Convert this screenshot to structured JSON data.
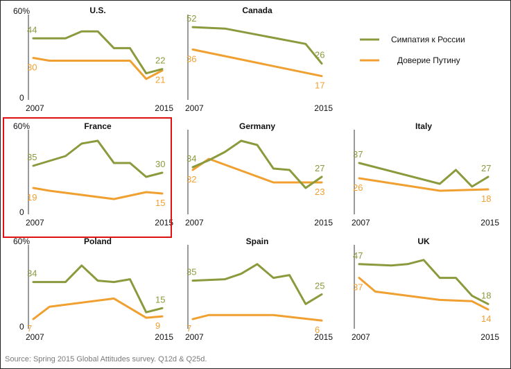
{
  "chart_data": {
    "type": "line",
    "colors": {
      "sympathy": "#8a9a3c",
      "trust": "#f0a030",
      "highlight": "#e01010"
    },
    "legend": {
      "position": "top-right",
      "items": [
        {
          "key": "sympathy",
          "label": "Симпатия к России"
        },
        {
          "key": "trust",
          "label": "Доверие Путину"
        }
      ]
    },
    "x_range": [
      2007,
      2015
    ],
    "y_range": [
      0,
      60
    ],
    "x_tick_labels": [
      "2007",
      "2015"
    ],
    "y_tick_labels": [
      "0",
      "60%"
    ],
    "panels": [
      {
        "title": "U.S.",
        "sympathy": [
          [
            2007,
            44
          ],
          [
            2008,
            44
          ],
          [
            2009,
            44
          ],
          [
            2010,
            49
          ],
          [
            2011,
            49
          ],
          [
            2012,
            37
          ],
          [
            2013,
            37
          ],
          [
            2014,
            19
          ],
          [
            2015,
            22
          ]
        ],
        "trust": [
          [
            2007,
            30
          ],
          [
            2008,
            28
          ],
          [
            2009,
            28
          ],
          [
            2010,
            28
          ],
          [
            2011,
            28
          ],
          [
            2012,
            28
          ],
          [
            2013,
            28
          ],
          [
            2014,
            15
          ],
          [
            2015,
            21
          ]
        ],
        "labels": {
          "sympathy_start": "44",
          "sympathy_end": "22",
          "trust_start": "30",
          "trust_end": "21"
        }
      },
      {
        "title": "Canada",
        "sympathy": [
          [
            2007,
            52
          ],
          [
            2009,
            51
          ],
          [
            2014,
            40
          ],
          [
            2015,
            26
          ]
        ],
        "trust": [
          [
            2007,
            36
          ],
          [
            2015,
            17
          ]
        ],
        "labels": {
          "sympathy_start": "52",
          "sympathy_end": "26",
          "trust_start": "36",
          "trust_end": "17"
        }
      },
      {
        "title": "France",
        "highlight": true,
        "sympathy": [
          [
            2007,
            35
          ],
          [
            2009,
            42
          ],
          [
            2010,
            51
          ],
          [
            2011,
            53
          ],
          [
            2012,
            37
          ],
          [
            2013,
            37
          ],
          [
            2014,
            27
          ],
          [
            2015,
            30
          ]
        ],
        "trust": [
          [
            2007,
            19
          ],
          [
            2008,
            17
          ],
          [
            2012,
            11
          ],
          [
            2014,
            16
          ],
          [
            2015,
            15
          ]
        ],
        "labels": {
          "sympathy_start": "35",
          "sympathy_end": "30",
          "trust_start": "19",
          "trust_end": "15"
        }
      },
      {
        "title": "Germany",
        "sympathy": [
          [
            2007,
            34
          ],
          [
            2008,
            39
          ],
          [
            2009,
            45
          ],
          [
            2010,
            53
          ],
          [
            2011,
            50
          ],
          [
            2012,
            33
          ],
          [
            2013,
            32
          ],
          [
            2014,
            19
          ],
          [
            2015,
            27
          ]
        ],
        "trust": [
          [
            2007,
            32
          ],
          [
            2008,
            40
          ],
          [
            2012,
            23
          ],
          [
            2015,
            23
          ]
        ],
        "labels": {
          "sympathy_start": "34",
          "sympathy_end": "27",
          "trust_start": "32",
          "trust_end": "23"
        }
      },
      {
        "title": "Italy",
        "sympathy": [
          [
            2007,
            37
          ],
          [
            2012,
            22
          ],
          [
            2013,
            32
          ],
          [
            2014,
            20
          ],
          [
            2015,
            27
          ]
        ],
        "trust": [
          [
            2007,
            26
          ],
          [
            2012,
            17
          ],
          [
            2015,
            18
          ]
        ],
        "labels": {
          "sympathy_start": "37",
          "sympathy_end": "27",
          "trust_start": "26",
          "trust_end": "18"
        }
      },
      {
        "title": "Poland",
        "sympathy": [
          [
            2007,
            34
          ],
          [
            2008,
            34
          ],
          [
            2009,
            34
          ],
          [
            2010,
            46
          ],
          [
            2011,
            35
          ],
          [
            2012,
            34
          ],
          [
            2013,
            36
          ],
          [
            2014,
            12
          ],
          [
            2015,
            15
          ]
        ],
        "trust": [
          [
            2007,
            7
          ],
          [
            2008,
            16
          ],
          [
            2012,
            22
          ],
          [
            2014,
            8
          ],
          [
            2015,
            9
          ]
        ],
        "labels": {
          "sympathy_start": "34",
          "sympathy_end": "15",
          "trust_start": "7",
          "trust_end": "9"
        }
      },
      {
        "title": "Spain",
        "sympathy": [
          [
            2007,
            35
          ],
          [
            2009,
            36
          ],
          [
            2010,
            40
          ],
          [
            2011,
            47
          ],
          [
            2012,
            37
          ],
          [
            2013,
            39
          ],
          [
            2014,
            18
          ],
          [
            2015,
            25
          ]
        ],
        "trust": [
          [
            2007,
            7
          ],
          [
            2008,
            10
          ],
          [
            2012,
            10
          ],
          [
            2015,
            6
          ]
        ],
        "labels": {
          "sympathy_start": "35",
          "sympathy_end": "25",
          "trust_start": "7",
          "trust_end": "6"
        }
      },
      {
        "title": "UK",
        "sympathy": [
          [
            2007,
            47
          ],
          [
            2009,
            46
          ],
          [
            2010,
            47
          ],
          [
            2011,
            50
          ],
          [
            2012,
            37
          ],
          [
            2013,
            37
          ],
          [
            2014,
            24
          ],
          [
            2015,
            18
          ]
        ],
        "trust": [
          [
            2007,
            37
          ],
          [
            2008,
            27
          ],
          [
            2012,
            21
          ],
          [
            2014,
            20
          ],
          [
            2015,
            14
          ]
        ],
        "labels": {
          "sympathy_start": "47",
          "sympathy_end": "18",
          "trust_start": "37",
          "trust_end": "14"
        }
      }
    ]
  },
  "source": "Source: Spring 2015 Global Attitudes survey. Q12d & Q25d."
}
